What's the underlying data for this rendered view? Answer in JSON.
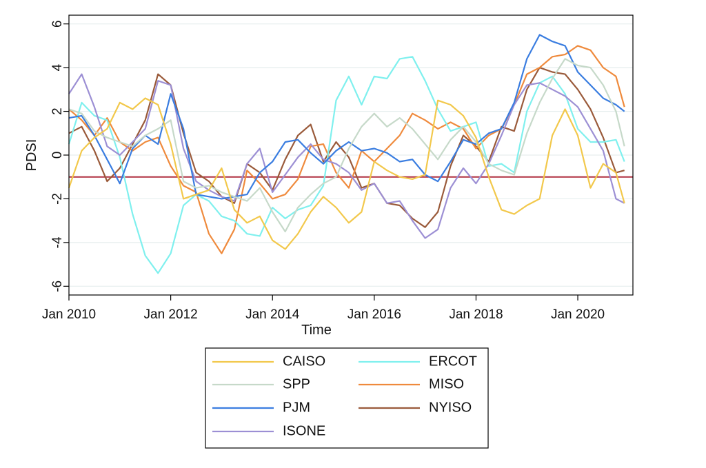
{
  "chart_data": {
    "type": "line",
    "title": "",
    "xlabel": "Time",
    "ylabel": "PDSI",
    "xlim": [
      "2010-01",
      "2021-02"
    ],
    "ylim": [
      -6.4,
      6.4
    ],
    "yticks": [
      -6,
      -4,
      -2,
      0,
      2,
      4,
      6
    ],
    "xtick_labels": [
      "Jan 2010",
      "Jan 2012",
      "Jan 2014",
      "Jan 2016",
      "Jan 2018",
      "Jan 2020"
    ],
    "grid": true,
    "legend_position": "bottom",
    "reference_line": {
      "y": -1,
      "color": "#b03040"
    },
    "series": [
      {
        "name": "CAISO",
        "color": "#f2c84b",
        "x": [
          "2010-01",
          "2010-04",
          "2010-07",
          "2010-10",
          "2011-01",
          "2011-04",
          "2011-07",
          "2011-10",
          "2012-01",
          "2012-04",
          "2012-07",
          "2012-10",
          "2013-01",
          "2013-04",
          "2013-07",
          "2013-10",
          "2014-01",
          "2014-04",
          "2014-07",
          "2014-10",
          "2015-01",
          "2015-04",
          "2015-07",
          "2015-10",
          "2016-01",
          "2016-04",
          "2016-07",
          "2016-10",
          "2017-01",
          "2017-04",
          "2017-07",
          "2017-10",
          "2018-01",
          "2018-04",
          "2018-07",
          "2018-10",
          "2019-01",
          "2019-04",
          "2019-07",
          "2019-10",
          "2020-01",
          "2020-04",
          "2020-07",
          "2020-10",
          "2020-12"
        ],
        "values": [
          -1.5,
          0.2,
          0.8,
          1.2,
          2.4,
          2.1,
          2.6,
          2.3,
          0.5,
          -2.0,
          -1.8,
          -1.6,
          -0.6,
          -2.5,
          -3.1,
          -2.8,
          -3.9,
          -4.3,
          -3.6,
          -2.6,
          -1.9,
          -2.4,
          -3.1,
          -2.6,
          -0.3,
          -0.7,
          -1.0,
          -1.1,
          -0.9,
          2.5,
          2.3,
          1.8,
          0.8,
          -1.0,
          -2.5,
          -2.7,
          -2.3,
          -2.0,
          0.9,
          2.1,
          0.9,
          -1.5,
          -0.4,
          -0.8,
          -2.2
        ]
      },
      {
        "name": "SPP",
        "color": "#c6d9c9",
        "x": [
          "2010-01",
          "2010-04",
          "2010-07",
          "2010-10",
          "2011-01",
          "2011-04",
          "2011-07",
          "2011-10",
          "2012-01",
          "2012-04",
          "2012-07",
          "2012-10",
          "2013-01",
          "2013-04",
          "2013-07",
          "2013-10",
          "2014-01",
          "2014-04",
          "2014-07",
          "2014-10",
          "2015-01",
          "2015-04",
          "2015-07",
          "2015-10",
          "2016-01",
          "2016-04",
          "2016-07",
          "2016-10",
          "2017-01",
          "2017-04",
          "2017-07",
          "2017-10",
          "2018-01",
          "2018-04",
          "2018-07",
          "2018-10",
          "2019-01",
          "2019-04",
          "2019-07",
          "2019-10",
          "2020-01",
          "2020-04",
          "2020-07",
          "2020-10",
          "2020-12"
        ],
        "values": [
          2.1,
          1.9,
          1.1,
          0.8,
          0.6,
          0.4,
          0.9,
          1.2,
          1.6,
          -1.2,
          -1.5,
          -1.4,
          -1.7,
          -1.9,
          -2.1,
          -1.5,
          -2.6,
          -3.5,
          -2.4,
          -1.8,
          -1.3,
          -1.0,
          0.3,
          1.3,
          1.9,
          1.3,
          1.7,
          1.2,
          0.5,
          -0.2,
          0.7,
          1.3,
          0.6,
          -0.4,
          -0.7,
          -0.9,
          1.0,
          2.4,
          3.5,
          4.4,
          4.1,
          4.0,
          3.2,
          2.0,
          0.4
        ]
      },
      {
        "name": "PJM",
        "color": "#3a7de0",
        "x": [
          "2010-01",
          "2010-04",
          "2010-07",
          "2010-10",
          "2011-01",
          "2011-04",
          "2011-07",
          "2011-10",
          "2012-01",
          "2012-04",
          "2012-07",
          "2012-10",
          "2013-01",
          "2013-04",
          "2013-07",
          "2013-10",
          "2014-01",
          "2014-04",
          "2014-07",
          "2014-10",
          "2015-01",
          "2015-04",
          "2015-07",
          "2015-10",
          "2016-01",
          "2016-04",
          "2016-07",
          "2016-10",
          "2017-01",
          "2017-04",
          "2017-07",
          "2017-10",
          "2018-01",
          "2018-04",
          "2018-07",
          "2018-10",
          "2019-01",
          "2019-04",
          "2019-07",
          "2019-10",
          "2020-01",
          "2020-04",
          "2020-07",
          "2020-10",
          "2020-12"
        ],
        "values": [
          1.7,
          1.8,
          0.9,
          -0.2,
          -1.3,
          0.3,
          0.9,
          0.5,
          2.8,
          1.2,
          -1.8,
          -1.9,
          -2.0,
          -1.9,
          -1.8,
          -0.8,
          -0.3,
          0.6,
          0.7,
          0.1,
          -0.4,
          0.2,
          0.6,
          0.2,
          0.3,
          0.1,
          -0.3,
          -0.2,
          -0.9,
          -1.2,
          -0.3,
          0.7,
          0.5,
          1.0,
          1.2,
          2.4,
          4.4,
          5.5,
          5.2,
          5.0,
          3.8,
          3.2,
          2.6,
          2.3,
          2.0
        ]
      },
      {
        "name": "ISONE",
        "color": "#9c8fd4",
        "x": [
          "2010-01",
          "2010-04",
          "2010-07",
          "2010-10",
          "2011-01",
          "2011-04",
          "2011-07",
          "2011-10",
          "2012-01",
          "2012-04",
          "2012-07",
          "2012-10",
          "2013-01",
          "2013-04",
          "2013-07",
          "2013-10",
          "2014-01",
          "2014-04",
          "2014-07",
          "2014-10",
          "2015-01",
          "2015-04",
          "2015-07",
          "2015-10",
          "2016-01",
          "2016-04",
          "2016-07",
          "2016-10",
          "2017-01",
          "2017-04",
          "2017-07",
          "2017-10",
          "2018-01",
          "2018-04",
          "2018-07",
          "2018-10",
          "2019-01",
          "2019-04",
          "2019-07",
          "2019-10",
          "2020-01",
          "2020-04",
          "2020-07",
          "2020-10",
          "2020-12"
        ],
        "values": [
          2.8,
          3.7,
          2.2,
          0.4,
          0.0,
          0.6,
          1.2,
          3.4,
          3.2,
          0.3,
          -1.2,
          -1.6,
          -1.9,
          -2.1,
          -0.4,
          0.3,
          -1.7,
          -0.9,
          -0.1,
          0.5,
          -0.2,
          -0.4,
          -0.8,
          -1.6,
          -1.3,
          -2.2,
          -2.1,
          -3.0,
          -3.8,
          -3.4,
          -1.5,
          -0.6,
          -1.3,
          -0.4,
          0.9,
          2.3,
          3.2,
          3.3,
          3.0,
          2.7,
          2.2,
          1.2,
          0.2,
          -2.0,
          -2.2
        ]
      },
      {
        "name": "ERCOT",
        "color": "#7ff0ee",
        "x": [
          "2010-01",
          "2010-04",
          "2010-07",
          "2010-10",
          "2011-01",
          "2011-04",
          "2011-07",
          "2011-10",
          "2012-01",
          "2012-04",
          "2012-07",
          "2012-10",
          "2013-01",
          "2013-04",
          "2013-07",
          "2013-10",
          "2014-01",
          "2014-04",
          "2014-07",
          "2014-10",
          "2015-01",
          "2015-04",
          "2015-07",
          "2015-10",
          "2016-01",
          "2016-04",
          "2016-07",
          "2016-10",
          "2017-01",
          "2017-04",
          "2017-07",
          "2017-10",
          "2018-01",
          "2018-04",
          "2018-07",
          "2018-10",
          "2019-01",
          "2019-04",
          "2019-07",
          "2019-10",
          "2020-01",
          "2020-04",
          "2020-07",
          "2020-10",
          "2020-12"
        ],
        "values": [
          0.5,
          2.4,
          1.8,
          1.6,
          -0.1,
          -2.7,
          -4.6,
          -5.4,
          -4.5,
          -2.3,
          -1.8,
          -2.1,
          -2.8,
          -3.0,
          -3.6,
          -3.7,
          -2.4,
          -2.9,
          -2.5,
          -2.3,
          -1.4,
          2.5,
          3.6,
          2.3,
          3.6,
          3.5,
          4.4,
          4.5,
          3.4,
          2.1,
          1.1,
          1.3,
          1.5,
          -0.5,
          -0.4,
          -0.8,
          2.0,
          3.3,
          3.6,
          2.8,
          1.2,
          0.6,
          0.6,
          0.7,
          -0.3
        ]
      },
      {
        "name": "MISO",
        "color": "#ef8a3c",
        "x": [
          "2010-01",
          "2010-04",
          "2010-07",
          "2010-10",
          "2011-01",
          "2011-04",
          "2011-07",
          "2011-10",
          "2012-01",
          "2012-04",
          "2012-07",
          "2012-10",
          "2013-01",
          "2013-04",
          "2013-07",
          "2013-10",
          "2014-01",
          "2014-04",
          "2014-07",
          "2014-10",
          "2015-01",
          "2015-04",
          "2015-07",
          "2015-10",
          "2016-01",
          "2016-04",
          "2016-07",
          "2016-10",
          "2017-01",
          "2017-04",
          "2017-07",
          "2017-10",
          "2018-01",
          "2018-04",
          "2018-07",
          "2018-10",
          "2019-01",
          "2019-04",
          "2019-07",
          "2019-10",
          "2020-01",
          "2020-04",
          "2020-07",
          "2020-10",
          "2020-12"
        ],
        "values": [
          2.1,
          1.6,
          0.9,
          1.7,
          0.6,
          0.2,
          0.6,
          0.8,
          -0.5,
          -1.4,
          -1.7,
          -3.6,
          -4.5,
          -3.4,
          -0.7,
          -1.3,
          -2.0,
          -1.8,
          -1.1,
          0.4,
          0.5,
          -0.8,
          -1.5,
          0.2,
          -0.3,
          0.3,
          0.9,
          1.9,
          1.6,
          1.2,
          1.5,
          1.2,
          0.3,
          0.9,
          1.2,
          2.3,
          3.7,
          4.0,
          4.5,
          4.6,
          5.0,
          4.8,
          4.0,
          3.6,
          2.2
        ]
      },
      {
        "name": "NYISO",
        "color": "#9a5a3a",
        "x": [
          "2010-01",
          "2010-04",
          "2010-07",
          "2010-10",
          "2011-01",
          "2011-04",
          "2011-07",
          "2011-10",
          "2012-01",
          "2012-04",
          "2012-07",
          "2012-10",
          "2013-01",
          "2013-04",
          "2013-07",
          "2013-10",
          "2014-01",
          "2014-04",
          "2014-07",
          "2014-10",
          "2015-01",
          "2015-04",
          "2015-07",
          "2015-10",
          "2016-01",
          "2016-04",
          "2016-07",
          "2016-10",
          "2017-01",
          "2017-04",
          "2017-07",
          "2017-10",
          "2018-01",
          "2018-04",
          "2018-07",
          "2018-10",
          "2019-01",
          "2019-04",
          "2019-07",
          "2019-10",
          "2020-01",
          "2020-04",
          "2020-07",
          "2020-10",
          "2020-12"
        ],
        "values": [
          1.0,
          1.3,
          0.2,
          -1.2,
          -0.6,
          0.5,
          1.6,
          3.7,
          3.2,
          1.0,
          -0.8,
          -1.2,
          -1.9,
          -2.2,
          -0.4,
          -0.8,
          -1.6,
          -0.2,
          0.9,
          1.4,
          -0.3,
          0.6,
          -0.1,
          -1.5,
          -1.3,
          -2.2,
          -2.3,
          -2.9,
          -3.3,
          -2.6,
          -0.5,
          0.9,
          0.4,
          -0.3,
          1.3,
          1.1,
          3.0,
          4.0,
          3.8,
          3.7,
          3.0,
          2.1,
          0.8,
          -0.8,
          -0.7
        ]
      }
    ]
  }
}
